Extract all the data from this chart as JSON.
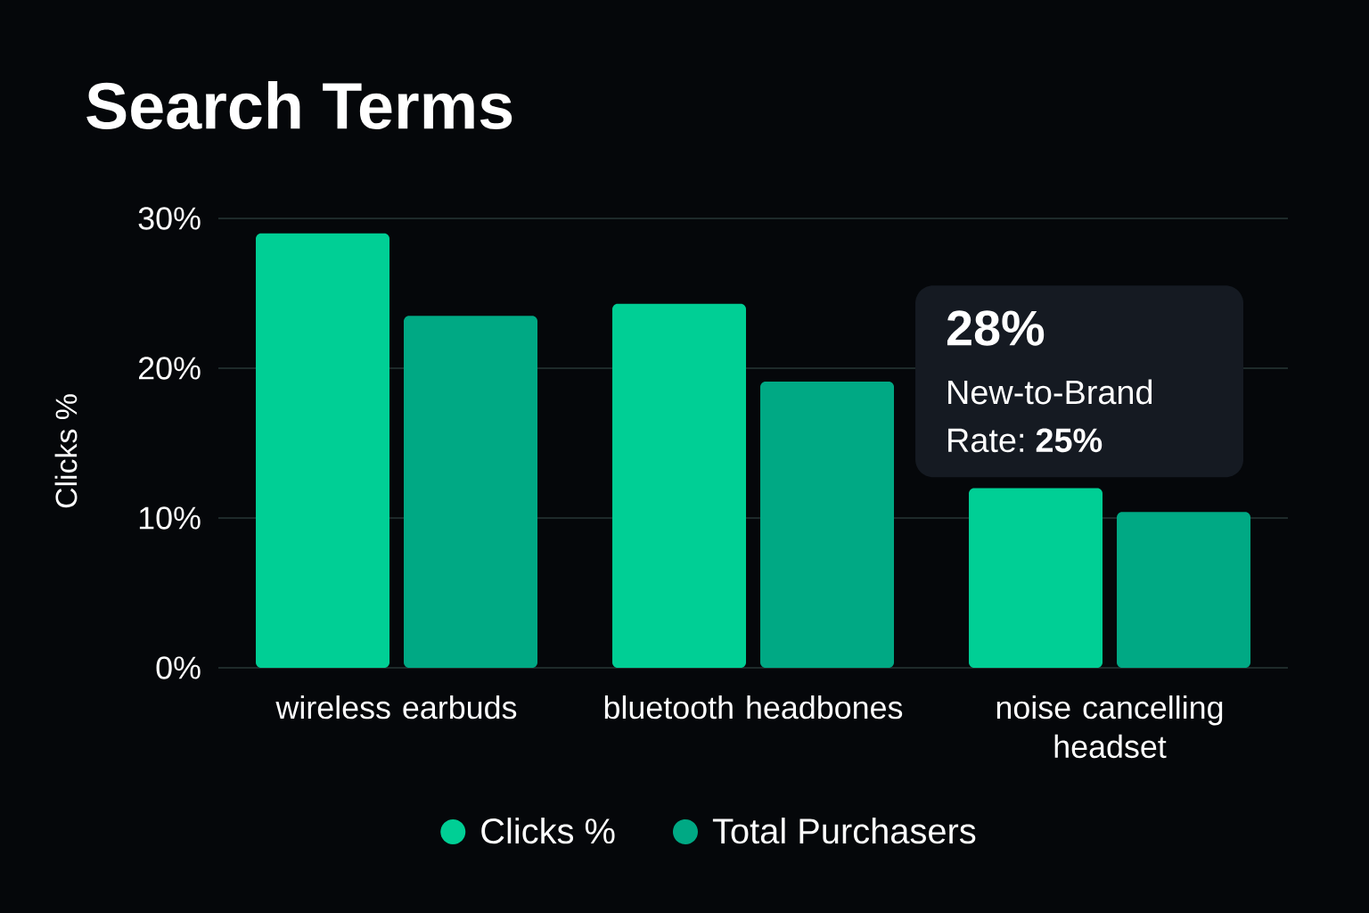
{
  "chart_data": {
    "type": "bar",
    "title": "Search Terms",
    "ylabel": "Clicks %",
    "categories": [
      "wireless earbuds",
      "bluetooth headbones",
      "noise cancelling headset"
    ],
    "series": [
      {
        "name": "Clicks %",
        "color": "#00cf95",
        "values": [
          29,
          24.3,
          12
        ]
      },
      {
        "name": "Total Purchasers",
        "color": "#00a984",
        "values": [
          23.5,
          19.1,
          10.4
        ]
      }
    ],
    "ylim": [
      0,
      30
    ],
    "yticks": [
      {
        "value": 0,
        "label": "0%"
      },
      {
        "value": 10,
        "label": "10%"
      },
      {
        "value": 20,
        "label": "20%"
      },
      {
        "value": 30,
        "label": "30%"
      }
    ],
    "grid": "y",
    "legend": "bottom",
    "annotations": [
      "28%",
      "New-to-Brand Rate: **25%**"
    ]
  }
}
